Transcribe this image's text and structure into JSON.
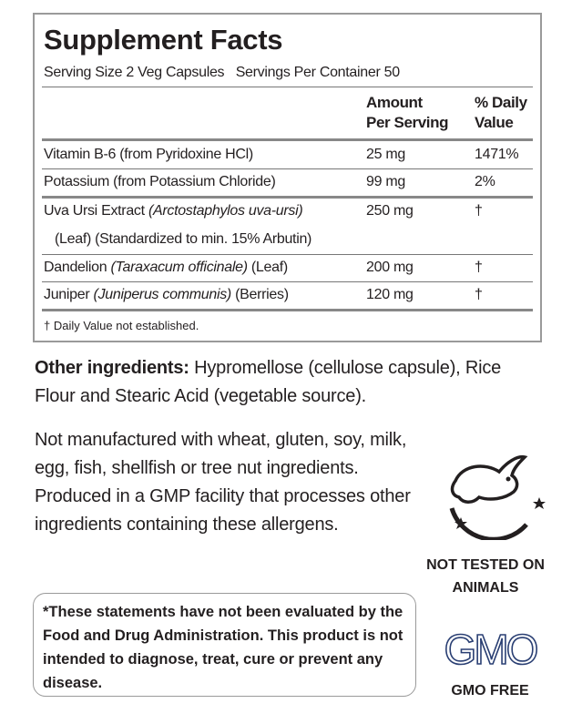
{
  "facts": {
    "title": "Supplement Facts",
    "serving_size": "Serving Size 2 Veg Capsules",
    "servings": "Servings Per Container 50",
    "columns": {
      "amount": [
        "Amount",
        "Per Serving"
      ],
      "daily_value": [
        "% Daily",
        "Value"
      ]
    },
    "rows": [
      {
        "name": [
          {
            "text": "Vitamin B-6 (from Pyridoxine HCl)"
          }
        ],
        "amount": "25 mg",
        "daily_value": "1471%"
      },
      {
        "name": [
          {
            "text": "Potassium (from Potassium Chloride)"
          }
        ],
        "amount": "99 mg",
        "daily_value": "2%",
        "rule": "thick"
      },
      {
        "name": [
          {
            "text": "Uva Ursi Extract"
          },
          {
            "text": "(Arctostaphylos uva-ursi)",
            "italic": true
          }
        ],
        "name_line2": "(Leaf) (Standardized to min. 15% Arbutin)",
        "amount": "250 mg",
        "daily_value": "†"
      },
      {
        "name": [
          {
            "text": "Dandelion"
          },
          {
            "text": "(Taraxacum officinale)",
            "italic": true
          },
          {
            "text": "(Leaf)"
          }
        ],
        "amount": "200 mg",
        "daily_value": "†"
      },
      {
        "name": [
          {
            "text": "Juniper"
          },
          {
            "text": "(Juniperus communis)",
            "italic": true
          },
          {
            "text": "(Berries)"
          }
        ],
        "amount": "120 mg",
        "daily_value": "†",
        "rule": "thick"
      }
    ],
    "footnote": "† Daily Value not established."
  },
  "other_ingredients": {
    "label": "Other ingredients:",
    "text": "Hypromellose (cellulose capsule), Rice Flour and Stearic Acid (vegetable source)."
  },
  "allergens": "Not manufactured with wheat, gluten, soy, milk, egg, fish, shellfish or tree nut ingredients. Produced in a GMP facility that processes other ingredients containing these allergens.",
  "disclaimer": "*These statements have not been evaluated by the Food and Drug Administration. This product is not intended to diagnose, treat, cure or prevent any disease.",
  "badges": {
    "cruelty_free": "NOT TESTED ON ANIMALS",
    "gmo_logo": "GMO",
    "gmo_free": "GMO FREE"
  }
}
